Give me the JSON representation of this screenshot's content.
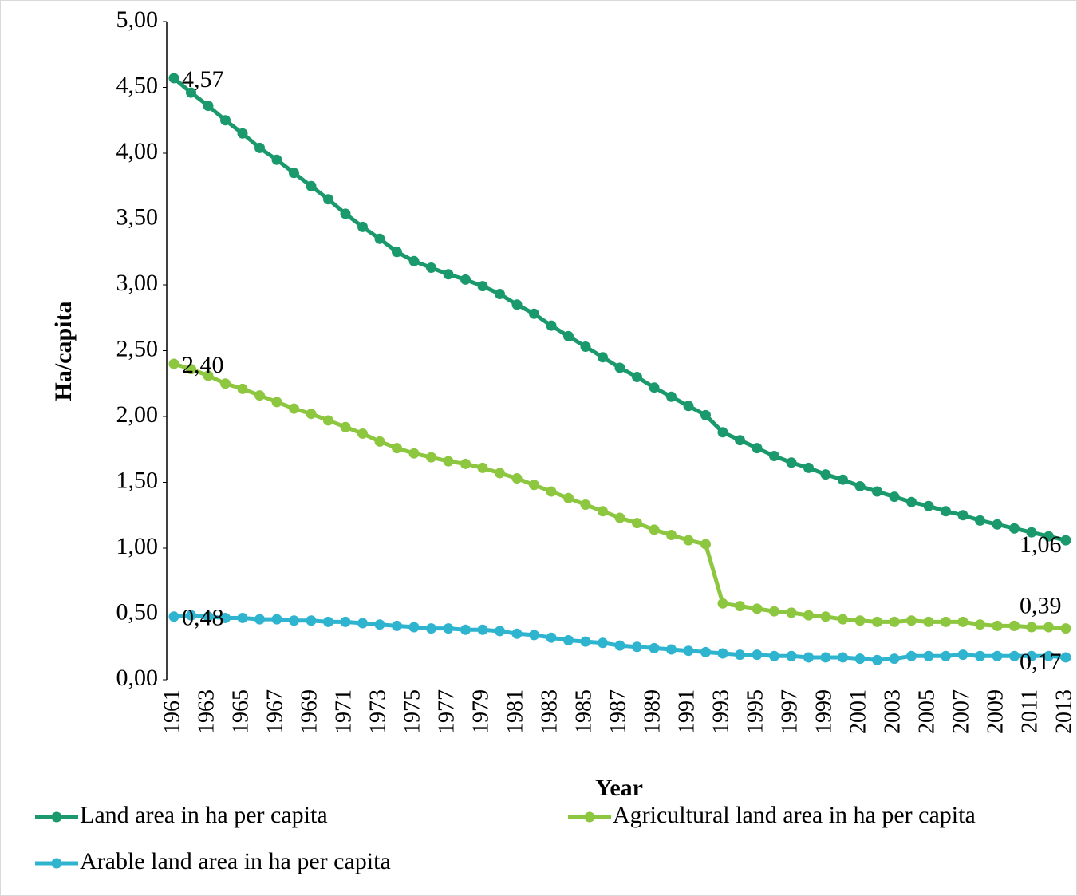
{
  "chart_data": {
    "type": "line",
    "y_label": "Ha/capita",
    "x_label": "Year",
    "categories": [
      1961,
      null,
      1963,
      null,
      1965,
      null,
      1967,
      null,
      1969,
      null,
      1971,
      null,
      1973,
      null,
      1975,
      null,
      1977,
      null,
      1979,
      null,
      1981,
      null,
      1983,
      null,
      1985,
      null,
      1987,
      null,
      1989,
      null,
      1991,
      null,
      1993,
      null,
      1995,
      null,
      1997,
      null,
      1999,
      null,
      2001,
      null,
      2003,
      null,
      2005,
      null,
      2007,
      null,
      2009,
      null,
      2011,
      null,
      2013
    ],
    "ylim": [
      0,
      5
    ],
    "yticks": [
      {
        "value": 0,
        "label": "0,00"
      },
      {
        "value": 0.5,
        "label": "0,50"
      },
      {
        "value": 1,
        "label": "1,00"
      },
      {
        "value": 1.5,
        "label": "1,50"
      },
      {
        "value": 2,
        "label": "2,00"
      },
      {
        "value": 2.5,
        "label": "2,50"
      },
      {
        "value": 3,
        "label": "3,00"
      },
      {
        "value": 3.5,
        "label": "3,50"
      },
      {
        "value": 4,
        "label": "4,00"
      },
      {
        "value": 4.5,
        "label": "4,50"
      },
      {
        "value": 5,
        "label": "5,00"
      }
    ],
    "series": [
      {
        "name": "Land area in ha per capita",
        "color": "#1a9a6c",
        "values": [
          4.57,
          4.46,
          4.36,
          4.25,
          4.15,
          4.04,
          3.95,
          3.85,
          3.75,
          3.65,
          3.54,
          3.44,
          3.35,
          3.25,
          3.18,
          3.13,
          3.08,
          3.04,
          2.99,
          2.93,
          2.85,
          2.78,
          2.69,
          2.61,
          2.53,
          2.45,
          2.37,
          2.3,
          2.22,
          2.15,
          2.08,
          2.01,
          1.88,
          1.82,
          1.76,
          1.7,
          1.65,
          1.61,
          1.56,
          1.52,
          1.47,
          1.43,
          1.39,
          1.35,
          1.32,
          1.28,
          1.25,
          1.21,
          1.18,
          1.15,
          1.12,
          1.09,
          1.06
        ],
        "value_labels": [
          "4,57",
          null,
          null,
          null,
          null,
          null,
          null,
          null,
          null,
          null,
          null,
          null,
          null,
          null,
          null,
          null,
          null,
          null,
          null,
          null,
          null,
          null,
          null,
          null,
          null,
          null,
          null,
          null,
          null,
          null,
          null,
          null,
          null,
          null,
          null,
          null,
          null,
          null,
          null,
          null,
          null,
          null,
          null,
          null,
          null,
          null,
          null,
          null,
          null,
          null,
          null,
          null,
          "1,06"
        ]
      },
      {
        "name": "Agricultural land area in ha per capita",
        "color": "#8dc63f",
        "values": [
          2.4,
          2.36,
          2.31,
          2.25,
          2.21,
          2.16,
          2.11,
          2.06,
          2.02,
          1.97,
          1.92,
          1.87,
          1.81,
          1.76,
          1.72,
          1.69,
          1.66,
          1.64,
          1.61,
          1.57,
          1.53,
          1.48,
          1.43,
          1.38,
          1.33,
          1.28,
          1.23,
          1.19,
          1.14,
          1.1,
          1.06,
          1.03,
          0.58,
          0.56,
          0.54,
          0.52,
          0.51,
          0.49,
          0.48,
          0.46,
          0.45,
          0.44,
          0.44,
          0.45,
          0.44,
          0.44,
          0.44,
          0.42,
          0.41,
          0.41,
          0.4,
          0.4,
          0.39
        ],
        "value_labels": [
          "2,40",
          null,
          null,
          null,
          null,
          null,
          null,
          null,
          null,
          null,
          null,
          null,
          null,
          null,
          null,
          null,
          null,
          null,
          null,
          null,
          null,
          null,
          null,
          null,
          null,
          null,
          null,
          null,
          null,
          null,
          null,
          null,
          null,
          null,
          null,
          null,
          null,
          null,
          null,
          null,
          null,
          null,
          null,
          null,
          null,
          null,
          null,
          null,
          null,
          null,
          null,
          null,
          "0,39"
        ]
      },
      {
        "name": "Arable land area in ha per capita",
        "color": "#2fb4cf",
        "values": [
          0.48,
          0.49,
          0.48,
          0.47,
          0.47,
          0.46,
          0.46,
          0.45,
          0.45,
          0.44,
          0.44,
          0.43,
          0.42,
          0.41,
          0.4,
          0.39,
          0.39,
          0.38,
          0.38,
          0.37,
          0.35,
          0.34,
          0.32,
          0.3,
          0.29,
          0.28,
          0.26,
          0.25,
          0.24,
          0.23,
          0.22,
          0.21,
          0.2,
          0.19,
          0.19,
          0.18,
          0.18,
          0.17,
          0.17,
          0.17,
          0.16,
          0.15,
          0.16,
          0.18,
          0.18,
          0.18,
          0.19,
          0.18,
          0.18,
          0.18,
          0.18,
          0.18,
          0.17
        ],
        "value_labels": [
          "0,48",
          null,
          null,
          null,
          null,
          null,
          null,
          null,
          null,
          null,
          null,
          null,
          null,
          null,
          null,
          null,
          null,
          null,
          null,
          null,
          null,
          null,
          null,
          null,
          null,
          null,
          null,
          null,
          null,
          null,
          null,
          null,
          null,
          null,
          null,
          null,
          null,
          null,
          null,
          null,
          null,
          null,
          null,
          null,
          null,
          null,
          null,
          null,
          null,
          null,
          null,
          null,
          "0,17"
        ]
      }
    ]
  }
}
